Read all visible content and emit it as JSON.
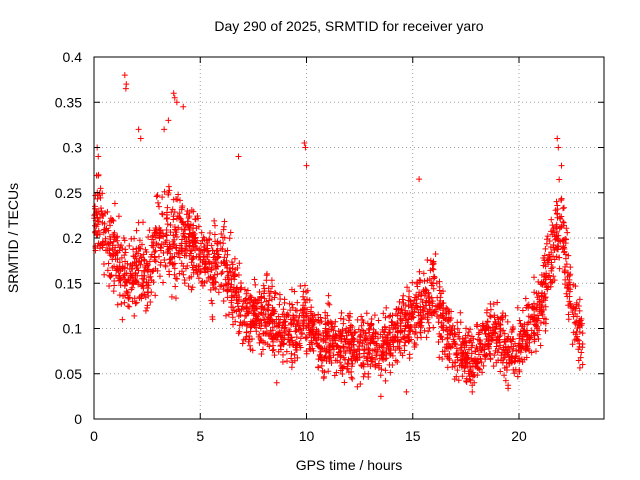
{
  "chart_data": {
    "type": "scatter",
    "title": "Day 290 of 2025, SRMTID for receiver yaro",
    "xlabel": "GPS time / hours",
    "ylabel": "SRMTID / TECUs",
    "xlim": [
      0,
      24
    ],
    "ylim": [
      0,
      0.4
    ],
    "x_ticks": [
      0,
      5,
      10,
      15,
      20
    ],
    "x_tick_labels": [
      "0",
      "5",
      "10",
      "15",
      "20"
    ],
    "y_ticks": [
      0,
      0.05,
      0.1,
      0.15,
      0.2,
      0.25,
      0.3,
      0.35,
      0.4
    ],
    "y_tick_labels": [
      "0",
      "0.05",
      "0.1",
      "0.15",
      "0.2",
      "0.25",
      "0.3",
      "0.35",
      "0.4"
    ],
    "grid": true,
    "marker": "+",
    "marker_color": "#ff0000",
    "series": [
      {
        "name": "SRMTID",
        "trend": [
          [
            0.0,
            0.23
          ],
          [
            0.5,
            0.2
          ],
          [
            1.0,
            0.18
          ],
          [
            1.5,
            0.15
          ],
          [
            2.0,
            0.17
          ],
          [
            2.5,
            0.16
          ],
          [
            3.0,
            0.2
          ],
          [
            3.5,
            0.2
          ],
          [
            4.0,
            0.2
          ],
          [
            4.5,
            0.2
          ],
          [
            5.0,
            0.18
          ],
          [
            5.5,
            0.16
          ],
          [
            6.0,
            0.18
          ],
          [
            6.5,
            0.15
          ],
          [
            7.0,
            0.12
          ],
          [
            7.5,
            0.11
          ],
          [
            8.0,
            0.11
          ],
          [
            8.5,
            0.11
          ],
          [
            9.0,
            0.1
          ],
          [
            9.5,
            0.1
          ],
          [
            10.0,
            0.11
          ],
          [
            10.5,
            0.09
          ],
          [
            11.0,
            0.09
          ],
          [
            11.5,
            0.08
          ],
          [
            12.0,
            0.08
          ],
          [
            12.5,
            0.08
          ],
          [
            13.0,
            0.08
          ],
          [
            13.5,
            0.08
          ],
          [
            14.0,
            0.09
          ],
          [
            14.5,
            0.1
          ],
          [
            15.0,
            0.12
          ],
          [
            15.5,
            0.13
          ],
          [
            16.0,
            0.14
          ],
          [
            16.5,
            0.1
          ],
          [
            17.0,
            0.08
          ],
          [
            17.5,
            0.07
          ],
          [
            18.0,
            0.07
          ],
          [
            18.5,
            0.09
          ],
          [
            19.0,
            0.1
          ],
          [
            19.5,
            0.07
          ],
          [
            20.0,
            0.08
          ],
          [
            20.5,
            0.1
          ],
          [
            21.0,
            0.12
          ],
          [
            21.5,
            0.18
          ],
          [
            22.0,
            0.22
          ],
          [
            22.5,
            0.12
          ],
          [
            23.0,
            0.08
          ]
        ],
        "outliers": [
          [
            1.45,
            0.38
          ],
          [
            1.5,
            0.365
          ],
          [
            1.52,
            0.37
          ],
          [
            2.1,
            0.32
          ],
          [
            2.2,
            0.31
          ],
          [
            3.3,
            0.32
          ],
          [
            3.5,
            0.33
          ],
          [
            3.75,
            0.36
          ],
          [
            3.8,
            0.355
          ],
          [
            3.9,
            0.35
          ],
          [
            4.2,
            0.345
          ],
          [
            6.8,
            0.29
          ],
          [
            9.9,
            0.305
          ],
          [
            9.95,
            0.3
          ],
          [
            10.0,
            0.28
          ],
          [
            15.3,
            0.265
          ],
          [
            14.7,
            0.03
          ],
          [
            13.5,
            0.025
          ],
          [
            21.8,
            0.31
          ],
          [
            21.85,
            0.3
          ],
          [
            22.0,
            0.28
          ],
          [
            0.15,
            0.3
          ],
          [
            0.2,
            0.29
          ],
          [
            8.6,
            0.04
          ],
          [
            17.8,
            0.03
          ]
        ]
      }
    ]
  }
}
